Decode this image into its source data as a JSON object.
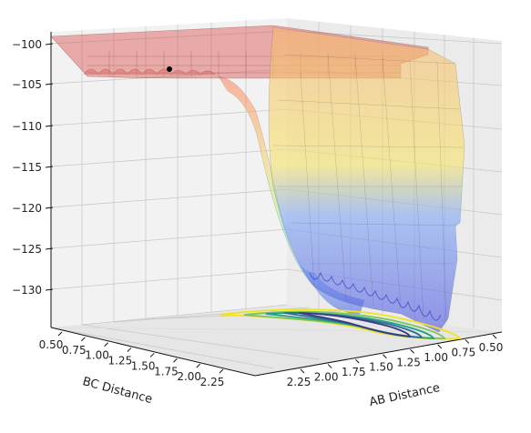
{
  "chart_data": {
    "type": "surface",
    "projection": "3d",
    "title": "",
    "xlabel": "AB Distance",
    "ylabel": "BC Distance",
    "zlabel": "",
    "x_ticks": [
      "0.50",
      "0.75",
      "1.00",
      "1.25",
      "1.50",
      "1.75",
      "2.00",
      "2.25"
    ],
    "y_ticks": [
      "0.50",
      "0.75",
      "1.00",
      "1.25",
      "1.50",
      "1.75",
      "2.00",
      "2.25"
    ],
    "z_ticks": [
      "−100",
      "−105",
      "−110",
      "−115",
      "−120",
      "−125",
      "−130"
    ],
    "xlim": [
      0.5,
      2.4
    ],
    "ylim": [
      0.5,
      2.4
    ],
    "zlim": [
      -134,
      -99
    ],
    "grid": true,
    "colormap": "jet",
    "contour_colormap": "viridis",
    "surface_alpha": 0.45,
    "marked_point": {
      "AB": 2.3,
      "BC": 0.75,
      "energy": -104.3
    },
    "depth_profile": [
      {
        "distance": 0.7,
        "energy": -128
      },
      {
        "distance": 1.0,
        "energy": -130
      },
      {
        "distance": 1.25,
        "energy": -127
      },
      {
        "distance": 1.5,
        "energy": -122
      },
      {
        "distance": 1.75,
        "energy": -117
      },
      {
        "distance": 2.0,
        "energy": -111
      },
      {
        "distance": 2.25,
        "energy": -105
      },
      {
        "distance": 2.4,
        "energy": -101
      }
    ],
    "colors": {
      "plateau": "#d9534f",
      "shoulder": "#fbb05a",
      "middle": "#f4ec6a",
      "lower": "#5b8ff0",
      "deep": "#4a55d6",
      "marker": "#000000"
    }
  }
}
